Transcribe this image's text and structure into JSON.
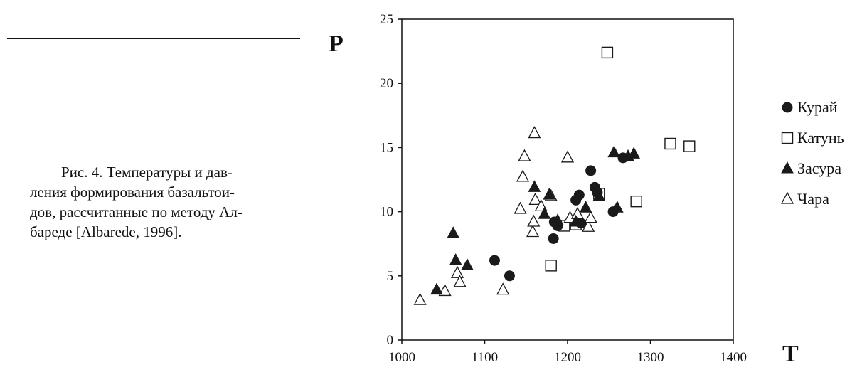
{
  "caption": {
    "lines": [
      "Рис. 4. Температуры и дав-",
      "ления формирования базальтои-",
      "дов, рассчитанные по методу Ал-",
      "бареде [Albarede, 1996]."
    ]
  },
  "chart_data": {
    "type": "scatter",
    "title": "",
    "xlabel": "T",
    "ylabel": "P",
    "xlim": [
      1000,
      1400
    ],
    "ylim": [
      0,
      25
    ],
    "xticks": [
      1000,
      1100,
      1200,
      1300,
      1400
    ],
    "yticks": [
      0,
      5,
      10,
      15,
      20,
      25
    ],
    "grid": false,
    "legend_position": "right",
    "series": [
      {
        "name": "Курай",
        "marker": "circle-filled",
        "points": [
          [
            1112,
            6.2
          ],
          [
            1130,
            5.0
          ],
          [
            1183,
            7.9
          ],
          [
            1184,
            9.2
          ],
          [
            1188,
            8.9
          ],
          [
            1210,
            10.9
          ],
          [
            1214,
            11.3
          ],
          [
            1216,
            9.1
          ],
          [
            1228,
            13.2
          ],
          [
            1233,
            11.9
          ],
          [
            1236,
            11.5
          ],
          [
            1255,
            10.0
          ],
          [
            1267,
            14.2
          ]
        ]
      },
      {
        "name": "Катунь",
        "marker": "square-open",
        "points": [
          [
            1180,
            5.8
          ],
          [
            1196,
            8.9
          ],
          [
            1210,
            9.0
          ],
          [
            1238,
            11.4
          ],
          [
            1248,
            22.4
          ],
          [
            1283,
            10.8
          ],
          [
            1324,
            15.3
          ],
          [
            1347,
            15.1
          ]
        ]
      },
      {
        "name": "Засура",
        "marker": "triangle-filled",
        "points": [
          [
            1042,
            3.9
          ],
          [
            1062,
            8.3
          ],
          [
            1065,
            6.2
          ],
          [
            1079,
            5.8
          ],
          [
            1160,
            11.9
          ],
          [
            1172,
            9.8
          ],
          [
            1178,
            11.3
          ],
          [
            1188,
            9.3
          ],
          [
            1210,
            9.2
          ],
          [
            1222,
            10.3
          ],
          [
            1238,
            11.2
          ],
          [
            1256,
            14.6
          ],
          [
            1260,
            10.3
          ],
          [
            1273,
            14.3
          ],
          [
            1280,
            14.5
          ]
        ]
      },
      {
        "name": "Чара",
        "marker": "triangle-open",
        "points": [
          [
            1022,
            3.1
          ],
          [
            1052,
            3.8
          ],
          [
            1067,
            5.2
          ],
          [
            1070,
            4.5
          ],
          [
            1122,
            3.9
          ],
          [
            1143,
            10.2
          ],
          [
            1146,
            12.7
          ],
          [
            1148,
            14.3
          ],
          [
            1158,
            8.4
          ],
          [
            1159,
            9.2
          ],
          [
            1160,
            16.1
          ],
          [
            1161,
            10.9
          ],
          [
            1168,
            10.4
          ],
          [
            1180,
            11.2
          ],
          [
            1200,
            14.2
          ],
          [
            1203,
            9.5
          ],
          [
            1212,
            9.8
          ],
          [
            1225,
            8.8
          ],
          [
            1228,
            9.5
          ]
        ]
      }
    ]
  }
}
